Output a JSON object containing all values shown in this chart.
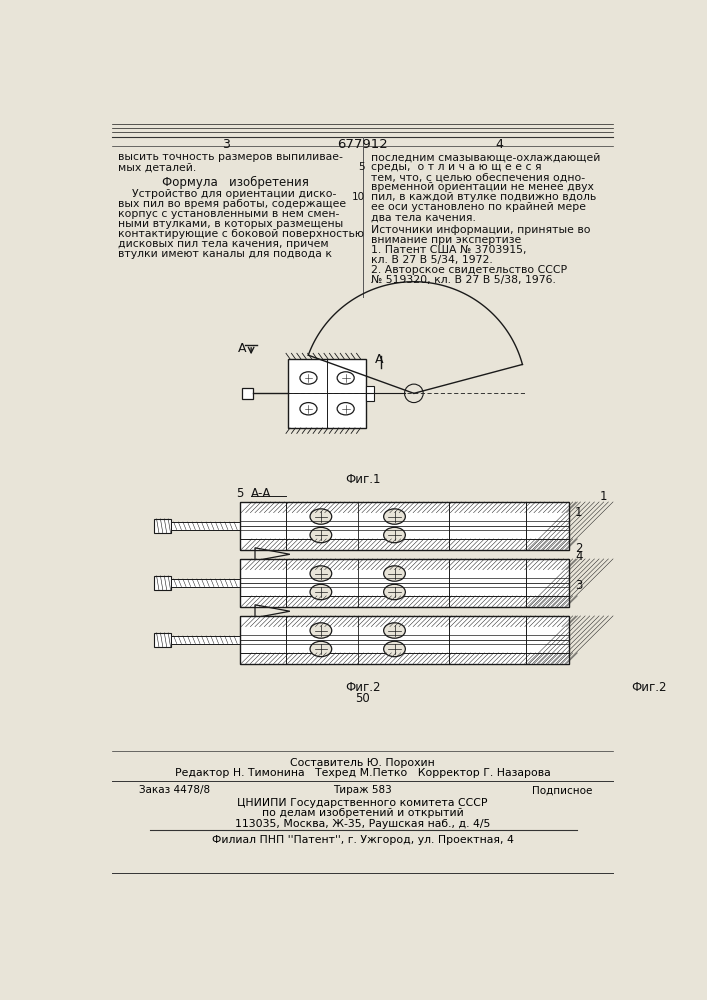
{
  "bg_color": "#e8e4d8",
  "page_color": "#e8e4d8",
  "patent_number": "677912",
  "page_left": "3",
  "page_right": "4",
  "title_formula": "Формула   изобретения",
  "col_left_text": [
    "высить точность размеров выпиливае-",
    "мых деталей."
  ],
  "col_right_text": [
    "последним смазывающе-охлаждающей",
    "среды,  о т л и ч а ю щ е е с я",
    "тем, что, с целью обеспечения одно-",
    "временной ориентации не менее двух",
    "пил, в каждой втулке подвижно вдоль",
    "ее оси установлено по крайней мере",
    "два тела качения."
  ],
  "sources_header": "Источники информации, принятые во",
  "sources_sub": "внимание при экспертизе",
  "source1": "1. Патент США № 3703915,",
  "source1b": "кл. В 27 В 5/34, 1972.",
  "source2": "2. Авторское свидетельство СССР",
  "source2b": "№ 519320, кл. В 27 В 5/38, 1976.",
  "formula_left_lines": [
    "    Устройство для ориентации диско-",
    "вых пил во время работы, содержащее",
    "корпус с установленными в нем смен-",
    "ными втулками, в которых размещены",
    "контактирующие с боковой поверхностью",
    "дисковых пил тела качения, причем",
    "втулки имеют каналы для подвода к"
  ],
  "fig1_label": "Фиг.1",
  "fig2_label": "Фиг.2",
  "fig2_aa_label": "А-А",
  "fig2_5": "5",
  "fig2_50": "50",
  "bottom_composer": "Составитель Ю. Порохин",
  "bottom_editor": "Редактор Н. Тимонина",
  "bottom_techr": "Техред М.Петко",
  "bottom_corrector": "Корректор Г. Назарова",
  "bottom_order": "Заказ 4478/8",
  "bottom_tirazh": "Тираж 583",
  "bottom_podp": "Подписное",
  "bottom_cniip": "ЦНИИПИ Государственного комитета СССР",
  "bottom_delam": "по делам изобретений и открытий",
  "bottom_addr": "113035, Москва, Ж-35, Раушская наб., д. 4/5",
  "bottom_filial": "Филиал ПНП ''Патент'', г. Ужгород, ул. Проектная, 4"
}
